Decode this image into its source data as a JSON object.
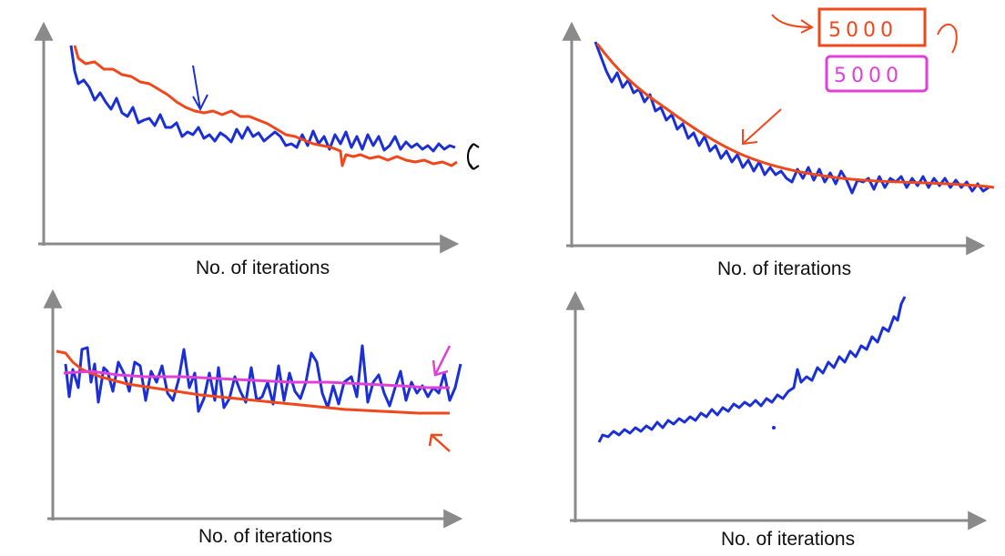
{
  "colors": {
    "axis": "#8a8a8a",
    "blue": "#1a2fd6",
    "red": "#f0471b",
    "magenta": "#e040d8",
    "black": "#000000"
  },
  "chart_data": [
    {
      "type": "line",
      "panel": "top-left",
      "xlabel": "No. of iterations",
      "ylabel": "",
      "grid": false,
      "series": [
        {
          "color": "blue",
          "x": [
            0,
            5,
            10,
            15,
            20,
            25,
            30,
            35,
            40,
            45,
            50,
            55,
            60,
            65,
            70,
            75,
            80,
            85,
            90,
            95,
            100
          ],
          "y": [
            0.95,
            0.78,
            0.72,
            0.7,
            0.64,
            0.62,
            0.59,
            0.55,
            0.54,
            0.55,
            0.53,
            0.52,
            0.51,
            0.5,
            0.51,
            0.5,
            0.5,
            0.49,
            0.5,
            0.49,
            0.5
          ]
        },
        {
          "color": "red",
          "x": [
            0,
            5,
            10,
            15,
            20,
            25,
            30,
            35,
            40,
            45,
            50,
            55,
            60,
            65,
            70,
            75,
            80,
            85,
            90,
            95,
            100
          ],
          "y": [
            0.92,
            0.86,
            0.82,
            0.78,
            0.74,
            0.7,
            0.66,
            0.65,
            0.64,
            0.62,
            0.59,
            0.55,
            0.52,
            0.5,
            0.49,
            0.46,
            0.44,
            0.43,
            0.42,
            0.41,
            0.4
          ]
        }
      ],
      "annotations": [
        "blue-down-arrow",
        "black-double-arrow"
      ]
    },
    {
      "type": "line",
      "panel": "top-right",
      "xlabel": "No. of iterations",
      "ylabel": "",
      "grid": false,
      "series": [
        {
          "color": "blue",
          "x": [
            0,
            5,
            10,
            15,
            20,
            25,
            30,
            35,
            40,
            45,
            50,
            55,
            60,
            65,
            70,
            75,
            80,
            85,
            90,
            95,
            100
          ],
          "y": [
            0.95,
            0.78,
            0.68,
            0.6,
            0.52,
            0.46,
            0.4,
            0.35,
            0.32,
            0.29,
            0.28,
            0.25,
            0.26,
            0.24,
            0.27,
            0.25,
            0.24,
            0.25,
            0.23,
            0.22,
            0.23
          ]
        },
        {
          "color": "red",
          "x": [
            0,
            5,
            10,
            15,
            20,
            25,
            30,
            35,
            40,
            45,
            50,
            55,
            60,
            65,
            70,
            75,
            80,
            85,
            90,
            95,
            100
          ],
          "y": [
            0.98,
            0.84,
            0.74,
            0.66,
            0.57,
            0.5,
            0.44,
            0.39,
            0.35,
            0.32,
            0.3,
            0.28,
            0.27,
            0.26,
            0.26,
            0.25,
            0.25,
            0.25,
            0.24,
            0.24,
            0.24
          ]
        }
      ],
      "annotations": [
        {
          "text": "5000",
          "color": "red",
          "boxed": true
        },
        {
          "text": "5000",
          "color": "magenta",
          "boxed": true
        }
      ]
    },
    {
      "type": "line",
      "panel": "bottom-left",
      "xlabel": "No. of iterations",
      "ylabel": "",
      "grid": false,
      "series": [
        {
          "color": "blue",
          "x": [
            0,
            4,
            8,
            12,
            16,
            20,
            24,
            28,
            32,
            36,
            40,
            44,
            48,
            52,
            56,
            60,
            64,
            68,
            72,
            76,
            80,
            84,
            88,
            92,
            96,
            100
          ],
          "y": [
            0.62,
            0.75,
            0.55,
            0.74,
            0.58,
            0.68,
            0.72,
            0.56,
            0.78,
            0.52,
            0.7,
            0.6,
            0.74,
            0.55,
            0.68,
            0.6,
            0.78,
            0.5,
            0.76,
            0.56,
            0.66,
            0.58,
            0.7,
            0.58,
            0.62,
            0.7
          ]
        },
        {
          "color": "red",
          "x": [
            0,
            5,
            10,
            20,
            30,
            40,
            50,
            60,
            70,
            80,
            90,
            100
          ],
          "y": [
            0.8,
            0.74,
            0.68,
            0.64,
            0.61,
            0.59,
            0.57,
            0.55,
            0.53,
            0.51,
            0.5,
            0.49
          ]
        },
        {
          "color": "magenta",
          "x": [
            0,
            10,
            20,
            30,
            40,
            50,
            60,
            70,
            80,
            90,
            100
          ],
          "y": [
            0.68,
            0.69,
            0.67,
            0.66,
            0.66,
            0.65,
            0.64,
            0.63,
            0.63,
            0.62,
            0.62
          ]
        }
      ],
      "annotations": [
        "magenta-arrow",
        "red-arrow"
      ]
    },
    {
      "type": "line",
      "panel": "bottom-right",
      "xlabel": "No. of iterations",
      "ylabel": "",
      "grid": false,
      "series": [
        {
          "color": "blue",
          "x": [
            0,
            10,
            20,
            30,
            40,
            50,
            55,
            60,
            65,
            70,
            75,
            80,
            85,
            90,
            95,
            100
          ],
          "y": [
            0.2,
            0.23,
            0.27,
            0.3,
            0.34,
            0.37,
            0.4,
            0.46,
            0.54,
            0.58,
            0.63,
            0.68,
            0.74,
            0.82,
            0.9,
            1.0
          ]
        }
      ],
      "annotations": []
    }
  ]
}
